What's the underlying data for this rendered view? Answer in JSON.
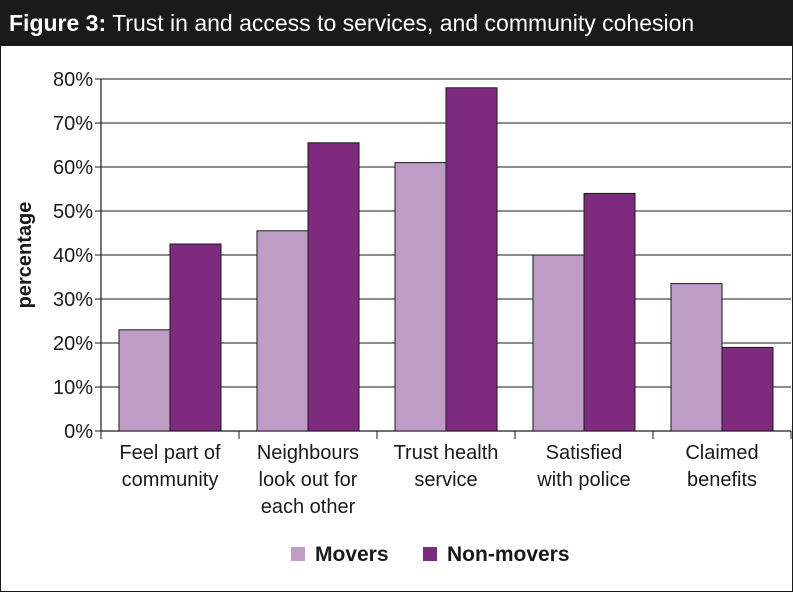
{
  "header": {
    "figure_label": "Figure 3:",
    "figure_title": "Trust in and access to services, and community cohesion"
  },
  "colors": {
    "header_bg": "#1a1a1a",
    "movers": "#bf9cc6",
    "non_movers": "#7e2a7e"
  },
  "chart_data": {
    "type": "bar",
    "title": "Trust in and access to services, and community cohesion",
    "xlabel": "",
    "ylabel": "percentage",
    "ylim": [
      0,
      80
    ],
    "y_ticks": [
      "0%",
      "10%",
      "20%",
      "30%",
      "40%",
      "50%",
      "60%",
      "70%",
      "80%"
    ],
    "grid": true,
    "legend_position": "bottom-center",
    "categories": [
      [
        "Feel part of",
        "community"
      ],
      [
        "Neighbours",
        "look out for",
        "each other"
      ],
      [
        "Trust health",
        "service"
      ],
      [
        "Satisfied",
        "with police"
      ],
      [
        "Claimed",
        "benefits"
      ]
    ],
    "series": [
      {
        "name": "Movers",
        "color": "#bf9cc6",
        "values": [
          23,
          45.5,
          61,
          40,
          33.5
        ]
      },
      {
        "name": "Non-movers",
        "color": "#7e2a7e",
        "values": [
          42.5,
          65.5,
          78,
          54,
          19
        ]
      }
    ]
  }
}
